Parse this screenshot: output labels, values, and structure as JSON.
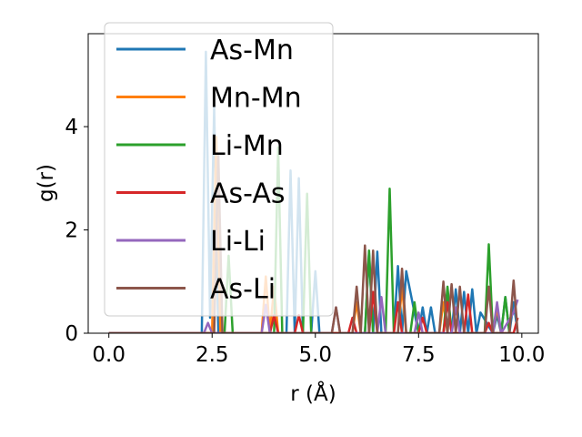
{
  "chart_data": {
    "type": "line",
    "title": "",
    "xlabel": "r (Å)",
    "ylabel": "g(r)",
    "xlim": [
      -0.5,
      10.4
    ],
    "ylim": [
      0,
      5.8
    ],
    "xticks": [
      0,
      2.5,
      5,
      7.5,
      10
    ],
    "xtick_labels": [
      "0.0",
      "2.5",
      "5.0",
      "7.5",
      "10.0"
    ],
    "yticks": [
      0,
      2,
      4
    ],
    "ytick_labels": [
      "0",
      "2",
      "4"
    ],
    "grid": false,
    "legend_position": "top-left",
    "series": [
      {
        "name": "As-Mn",
        "color": "#1f77b4",
        "x": [
          0,
          2.25,
          2.35,
          2.45,
          2.55,
          2.65,
          4.3,
          4.4,
          4.5,
          4.6,
          4.7,
          4.9,
          5.0,
          5.1,
          5.2,
          6.2,
          6.3,
          6.4,
          6.5,
          6.6,
          6.9,
          7.0,
          7.1,
          7.2,
          7.5,
          7.6,
          7.7,
          7.8,
          7.9,
          8.1,
          8.2,
          8.3,
          8.4,
          8.5,
          8.6,
          8.7,
          8.8,
          8.9,
          9.0,
          9.3,
          9.4,
          9.5,
          9.6,
          9.7,
          9.8,
          9.9
        ],
        "y": [
          0,
          0,
          5.45,
          0.3,
          4.4,
          0,
          0,
          3.15,
          0,
          3.0,
          0,
          0,
          1.2,
          0,
          0,
          0,
          1.55,
          0,
          1.58,
          0,
          0,
          1.3,
          0,
          1.2,
          0,
          0.5,
          0,
          0.5,
          0,
          0,
          0.75,
          0,
          0.85,
          0,
          0.8,
          0,
          0.85,
          0,
          0.4,
          0,
          0.35,
          0,
          0.7,
          0,
          0.6,
          0
        ]
      },
      {
        "name": "Mn-Mn",
        "color": "#ff7f0e",
        "x": [
          0,
          2.5,
          2.6,
          2.7,
          3.7,
          3.8,
          3.9,
          4.0,
          4.1,
          4.2,
          5.9,
          6.0,
          6.1,
          6.2,
          7.0,
          7.1,
          7.2,
          7.3,
          8.0,
          8.1,
          8.2,
          8.3,
          9.3,
          9.4,
          9.5
        ],
        "y": [
          0,
          0,
          3.8,
          0,
          0,
          1.1,
          0,
          0.9,
          0,
          0,
          0,
          0.6,
          0,
          0,
          0,
          0.9,
          0,
          0,
          0,
          0.6,
          0,
          0,
          0,
          0.5,
          0
        ]
      },
      {
        "name": "Li-Mn",
        "color": "#2ca02c",
        "x": [
          0,
          2.8,
          2.9,
          3.0,
          4.0,
          4.1,
          4.2,
          4.7,
          4.8,
          4.9,
          5.0,
          6.2,
          6.3,
          6.4,
          6.7,
          6.8,
          6.9,
          7.3,
          7.4,
          7.5,
          8.1,
          8.2,
          8.3,
          9.1,
          9.2,
          9.3,
          9.5,
          9.6,
          9.7,
          9.8
        ],
        "y": [
          0,
          0,
          1.5,
          0,
          0,
          3.6,
          0,
          0,
          2.7,
          0,
          0,
          0,
          1.6,
          0,
          0,
          2.8,
          0,
          0,
          0.6,
          0,
          0,
          0.9,
          0,
          0,
          1.72,
          0,
          0,
          0.7,
          0,
          0
        ]
      },
      {
        "name": "As-As",
        "color": "#d62728",
        "x": [
          0,
          3.9,
          4.0,
          4.1,
          4.5,
          4.6,
          4.7,
          5.8,
          5.9,
          6.0,
          6.3,
          6.4,
          6.5,
          6.9,
          7.0,
          7.1,
          7.5,
          7.6,
          7.7,
          8.1,
          8.2,
          8.3,
          8.6,
          8.7,
          8.8,
          9.1,
          9.2,
          9.3,
          9.8,
          9.9
        ],
        "y": [
          0,
          0,
          0.35,
          0,
          0,
          0.35,
          0,
          0,
          0.3,
          0,
          0,
          0.8,
          0,
          0,
          0.6,
          0,
          0,
          0.3,
          0,
          0,
          0.6,
          0,
          0,
          0.75,
          0,
          0,
          0.2,
          0,
          0,
          0.3
        ]
      },
      {
        "name": "Li-Li",
        "color": "#9467bd",
        "x": [
          0,
          2.3,
          2.4,
          2.5,
          3.7,
          3.8,
          3.9,
          5.4,
          5.5,
          5.6,
          6.5,
          6.6,
          6.7,
          7.4,
          7.5,
          7.6,
          7.7,
          8.3,
          8.4,
          8.5,
          8.6,
          9.3,
          9.4,
          9.5,
          9.8,
          9.9
        ],
        "y": [
          0,
          0,
          0.2,
          0,
          0,
          0.55,
          0,
          0,
          0.5,
          0,
          0,
          0.7,
          0,
          0,
          0.4,
          0,
          0,
          0,
          0.5,
          0,
          0,
          0,
          0.6,
          0,
          0.4,
          0.65
        ]
      },
      {
        "name": "As-Li",
        "color": "#8c564b",
        "x": [
          0,
          2.55,
          2.65,
          2.75,
          5.4,
          5.5,
          5.6,
          5.9,
          6.0,
          6.1,
          6.2,
          6.3,
          6.4,
          6.5,
          7.0,
          7.1,
          7.2,
          7.3,
          8.0,
          8.1,
          8.2,
          8.3,
          8.4,
          8.5,
          8.6,
          9.1,
          9.2,
          9.3,
          9.7,
          9.8,
          9.9
        ],
        "y": [
          0,
          0,
          3.45,
          0,
          0,
          0.5,
          0,
          0,
          0.9,
          0,
          1.7,
          0,
          1.6,
          0,
          0,
          1.25,
          0,
          0,
          0,
          1.0,
          0,
          0.95,
          0,
          0.9,
          0,
          0,
          0.9,
          0,
          0,
          1.02,
          0
        ]
      }
    ]
  }
}
